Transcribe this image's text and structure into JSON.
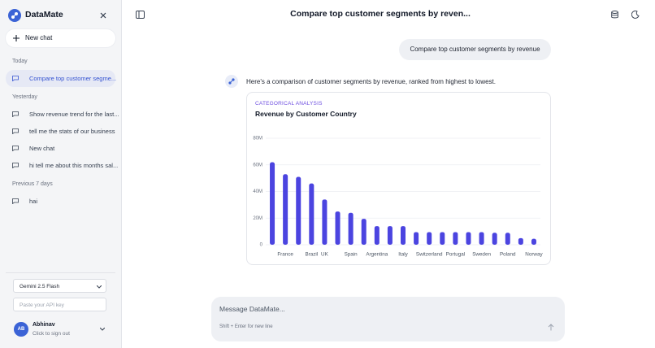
{
  "sidebar": {
    "brand": "DataMate",
    "new_chat": "New chat",
    "groups": [
      {
        "label": "Today",
        "items": [
          "Compare top customer segme..."
        ]
      },
      {
        "label": "Yesterday",
        "items": [
          "Show revenue trend for the last...",
          "tell me the stats of our business",
          "New chat",
          "hi tell me about this months sal..."
        ]
      },
      {
        "label": "Previous 7 days",
        "items": [
          "hai"
        ]
      }
    ],
    "model": "Gemini 2.5 Flash",
    "api_key_placeholder": "Paste your API key",
    "user": {
      "initials": "AB",
      "name": "Abhinav",
      "action": "Click to sign out"
    }
  },
  "header": {
    "title": "Compare top customer segments by reven..."
  },
  "messages": {
    "user": "Compare top customer segments by revenue",
    "assistant": "Here's a comparison of customer segments by revenue, ranked from highest to lowest."
  },
  "chart_data": {
    "type": "bar",
    "kicker": "CATEGORICAL ANALYSIS",
    "title": "Revenue by Customer Country",
    "categories": [
      null,
      "France",
      null,
      "Brazil",
      "UK",
      null,
      "Spain",
      null,
      "Argentina",
      null,
      "Italy",
      null,
      "Switzerland",
      null,
      "Portugal",
      null,
      "Sweden",
      null,
      "Poland",
      null,
      "Norway"
    ],
    "values": [
      62000000,
      53000000,
      51000000,
      46000000,
      34000000,
      25000000,
      24000000,
      19500000,
      14000000,
      14000000,
      14000000,
      9500000,
      9500000,
      9500000,
      9500000,
      9500000,
      9500000,
      9000000,
      9000000,
      5000000,
      4500000
    ],
    "color": "#4b44e0",
    "ylim": [
      0,
      80000000
    ],
    "yticks": [
      0,
      {
        "value": 20000000,
        "label": "20M"
      },
      {
        "value": 40000000,
        "label": "40M"
      },
      {
        "value": 60000000,
        "label": "60M"
      },
      {
        "value": 80000000,
        "label": "80M"
      }
    ],
    "grid": true
  },
  "composer": {
    "placeholder": "Message DataMate...",
    "hint": "Shift + Enter for new line"
  }
}
